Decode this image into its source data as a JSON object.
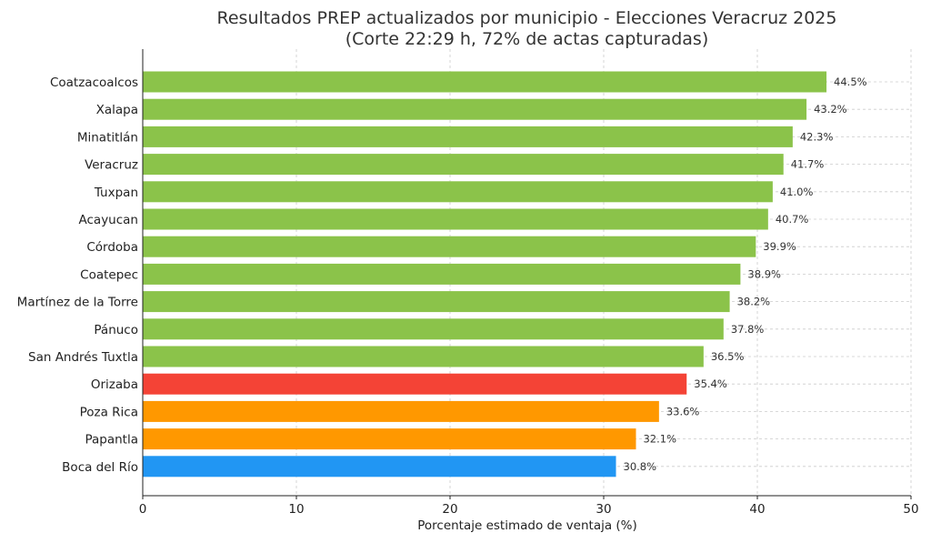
{
  "chart_data": {
    "type": "bar",
    "orientation": "horizontal",
    "title": "Resultados PREP actualizados por municipio - Elecciones Veracruz 2025",
    "subtitle": "(Corte 22:29 h, 72% de actas capturadas)",
    "xlabel": "Porcentaje estimado de ventaja (%)",
    "ylabel": "",
    "xlim": [
      0,
      50
    ],
    "xticks": [
      0,
      10,
      20,
      30,
      40,
      50
    ],
    "grid": true,
    "categories": [
      "Coatzacoalcos",
      "Xalapa",
      "Minatitlán",
      "Veracruz",
      "Tuxpan",
      "Acayucan",
      "Córdoba",
      "Coatepec",
      "Martínez de la Torre",
      "Pánuco",
      "San Andrés Tuxtla",
      "Orizaba",
      "Poza Rica",
      "Papantla",
      "Boca del Río"
    ],
    "values": [
      44.5,
      43.2,
      42.3,
      41.7,
      41.0,
      40.7,
      39.9,
      38.9,
      38.2,
      37.8,
      36.5,
      35.4,
      33.6,
      32.1,
      30.8
    ],
    "value_labels": [
      "44.5%",
      "43.2%",
      "42.3%",
      "41.7%",
      "41.0%",
      "40.7%",
      "39.9%",
      "38.9%",
      "38.2%",
      "37.8%",
      "36.5%",
      "35.4%",
      "33.6%",
      "32.1%",
      "30.8%"
    ],
    "colors": [
      "#8bc34a",
      "#8bc34a",
      "#8bc34a",
      "#8bc34a",
      "#8bc34a",
      "#8bc34a",
      "#8bc34a",
      "#8bc34a",
      "#8bc34a",
      "#8bc34a",
      "#8bc34a",
      "#f44336",
      "#ff9800",
      "#ff9800",
      "#2196f3"
    ]
  }
}
